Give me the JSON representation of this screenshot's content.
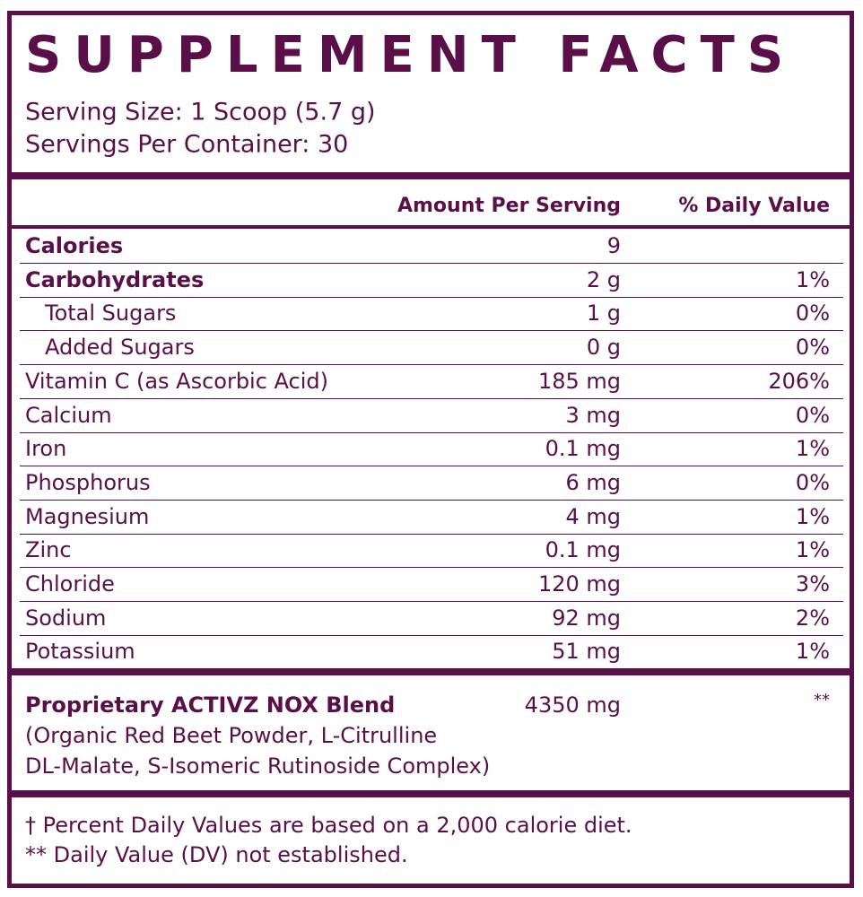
{
  "header": {
    "title": "SUPPLEMENT FACTS",
    "serving_size": "Serving Size: 1 Scoop (5.7 g)",
    "servings_per_container": "Servings Per Container: 30"
  },
  "table": {
    "columns": [
      "Amount Per Serving",
      "% Daily Value"
    ],
    "rows": [
      {
        "name": "Calories",
        "amount": "9"
      },
      {
        "name": "Carbohydrates",
        "amount": "2 g",
        "dv": "1%"
      },
      {
        "name": "Total Sugars",
        "amount": "1 g",
        "dv": "0%"
      },
      {
        "name": "Added Sugars",
        "amount": "0 g",
        "dv": "0%"
      },
      {
        "name": "Vitamin C (as Ascorbic Acid)",
        "amount": "185 mg",
        "dv": "206%"
      },
      {
        "name": "Calcium",
        "amount": "3 mg",
        "dv": "0%"
      },
      {
        "name": "Iron",
        "amount": "0.1 mg",
        "dv": "1%"
      },
      {
        "name": "Phosphorus",
        "amount": "6 mg",
        "dv": "0%"
      },
      {
        "name": "Magnesium",
        "amount": "4 mg",
        "dv": "1%"
      },
      {
        "name": "Zinc",
        "amount": "0.1 mg",
        "dv": "1%"
      },
      {
        "name": "Chloride",
        "amount": "120 mg",
        "dv": "3%"
      },
      {
        "name": "Sodium",
        "amount": "92 mg",
        "dv": "2%"
      },
      {
        "name": "Potassium",
        "amount": "51 mg",
        "dv": "1%"
      }
    ]
  },
  "blend": {
    "name": "Proprietary ACTIVZ NOX Blend",
    "amount": "4350 mg",
    "dv": "**",
    "ingredients": [
      "(Organic Red Beet Powder, L-Citrulline",
      "DL-Malate, S-Isomeric Rutinoside Complex)"
    ]
  },
  "footnotes": [
    "† Percent Daily Values are based on a 2,000 calorie diet.",
    "** Daily Value (DV) not established."
  ]
}
